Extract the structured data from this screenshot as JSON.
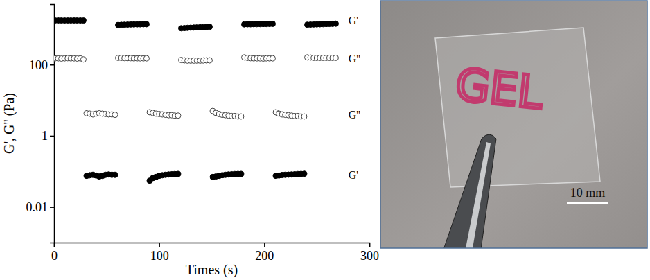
{
  "chart_data": {
    "type": "scatter",
    "x_label": "Times (s)",
    "y_label": "G', G'' (Pa)",
    "log": "y",
    "grid": false,
    "xlim": [
      0,
      300
    ],
    "xticks": [
      0,
      100,
      200,
      300
    ],
    "ylim": [
      0.001,
      5000
    ],
    "yticks": [
      0.01,
      1,
      100
    ],
    "x": [
      1,
      4,
      7,
      10,
      13,
      16,
      19,
      22,
      25,
      28,
      31,
      34,
      37,
      40,
      43,
      46,
      49,
      52,
      55,
      58,
      61,
      64,
      67,
      70,
      73,
      76,
      79,
      82,
      85,
      88,
      91,
      94,
      97,
      100,
      103,
      106,
      109,
      112,
      115,
      118,
      121,
      124,
      127,
      130,
      133,
      136,
      139,
      142,
      145,
      148,
      151,
      154,
      157,
      160,
      163,
      166,
      169,
      172,
      175,
      178,
      181,
      184,
      187,
      190,
      193,
      196,
      199,
      202,
      205,
      208,
      211,
      214,
      217,
      220,
      223,
      226,
      229,
      232,
      235,
      238,
      241,
      244,
      247,
      250,
      253,
      256,
      259,
      262,
      265,
      268
    ],
    "series": [
      {
        "name": "G'",
        "color": "#000000",
        "marker": "filled-circle",
        "values": [
          1740,
          1745,
          1740,
          1738,
          1742,
          1740,
          1745,
          1742,
          1740,
          1735,
          0.075,
          0.078,
          0.08,
          0.077,
          0.072,
          0.075,
          0.08,
          0.082,
          0.08,
          0.08,
          1300,
          1310,
          1320,
          1330,
          1340,
          1345,
          1350,
          1355,
          1360,
          1365,
          0.055,
          0.065,
          0.07,
          0.075,
          0.078,
          0.08,
          0.082,
          0.083,
          0.084,
          0.085,
          1050,
          1060,
          1075,
          1090,
          1100,
          1110,
          1120,
          1130,
          1140,
          1150,
          0.07,
          0.072,
          0.075,
          0.078,
          0.08,
          0.082,
          0.083,
          0.084,
          0.085,
          0.085,
          1350,
          1355,
          1360,
          1365,
          1370,
          1375,
          1380,
          1385,
          1390,
          1395,
          0.075,
          0.077,
          0.079,
          0.08,
          0.081,
          0.082,
          0.083,
          0.084,
          0.085,
          0.086,
          1320,
          1330,
          1340,
          1350,
          1360,
          1370,
          1380,
          1390,
          1400,
          1410
        ]
      },
      {
        "name": "G''",
        "color": "#444444",
        "marker": "open-circle",
        "values": [
          150,
          150,
          148,
          150,
          152,
          150,
          150,
          148,
          150,
          140,
          4.3,
          4.2,
          4.0,
          4.2,
          4.3,
          4.2,
          4.1,
          4.0,
          4.0,
          3.9,
          155,
          155,
          153,
          152,
          152,
          150,
          150,
          150,
          150,
          150,
          4.6,
          4.4,
          4.2,
          4.1,
          4.0,
          3.9,
          3.8,
          3.8,
          3.7,
          3.7,
          135,
          132,
          130,
          130,
          130,
          130,
          130,
          131,
          132,
          132,
          5.0,
          4.4,
          4.1,
          3.9,
          3.8,
          3.7,
          3.6,
          3.6,
          3.5,
          3.5,
          160,
          155,
          152,
          150,
          150,
          150,
          148,
          150,
          150,
          150,
          4.6,
          4.2,
          4.0,
          3.9,
          3.8,
          3.7,
          3.6,
          3.6,
          3.5,
          3.5,
          160,
          158,
          155,
          155,
          155,
          155,
          155,
          155,
          155,
          155
        ]
      }
    ],
    "annotations": [
      {
        "text": "G'",
        "x": 280,
        "y": 1740
      },
      {
        "text": "G''",
        "x": 280,
        "y": 150
      },
      {
        "text": "G''",
        "x": 280,
        "y": 4
      },
      {
        "text": "G'",
        "x": 280,
        "y": 0.08
      }
    ]
  },
  "photo": {
    "text": "GEL",
    "scale_bar": "10 mm"
  }
}
